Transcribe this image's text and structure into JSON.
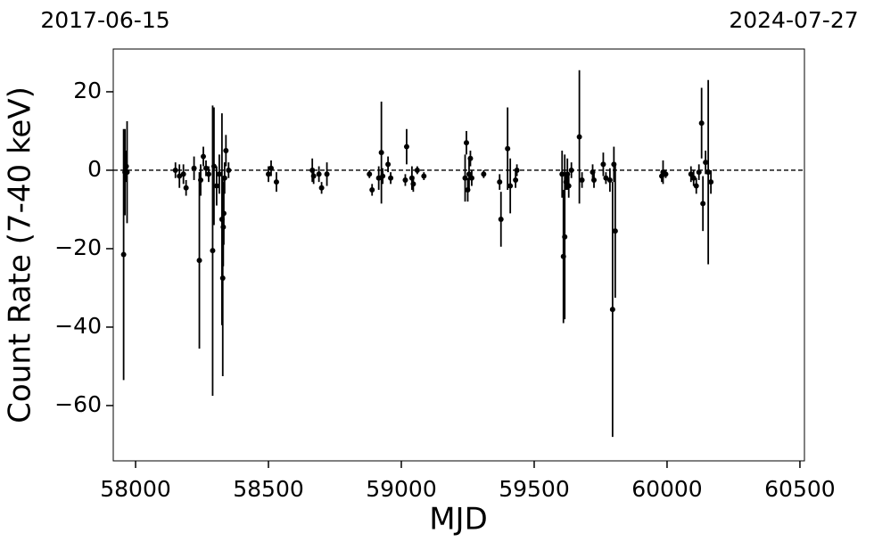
{
  "chart_data": {
    "type": "errorbar",
    "xlabel": "MJD",
    "ylabel": "Count Rate (7-40 keV)",
    "top_labels": [
      "2017-06-15",
      "2024-07-27"
    ],
    "color": "#000000",
    "hline": 0,
    "xlim": [
      57916,
      60517
    ],
    "ylim": [
      -74.1,
      30.9
    ],
    "xticks": [
      58000,
      58500,
      59000,
      59500,
      60000,
      60500
    ],
    "yticks": [
      {
        "value": -60,
        "label": "−60"
      },
      {
        "value": -40,
        "label": "−40"
      },
      {
        "value": -20,
        "label": "−20"
      },
      0,
      20
    ],
    "x": [
      57955,
      57960,
      57965,
      57968,
      58150,
      58165,
      58180,
      58190,
      58220,
      58240,
      58245,
      58255,
      58265,
      58275,
      58290,
      58295,
      58305,
      58315,
      58325,
      58328,
      58330,
      58332,
      58335,
      58340,
      58350,
      58500,
      58510,
      58530,
      58665,
      58670,
      58690,
      58700,
      58720,
      58880,
      58890,
      58915,
      58925,
      58930,
      58950,
      58960,
      59015,
      59020,
      59040,
      59045,
      59060,
      59085,
      59240,
      59245,
      59250,
      59255,
      59260,
      59265,
      59310,
      59370,
      59375,
      59400,
      59410,
      59430,
      59435,
      59605,
      59610,
      59615,
      59620,
      59625,
      59630,
      59640,
      59670,
      59680,
      59720,
      59725,
      59760,
      59770,
      59785,
      59795,
      59800,
      59805,
      59980,
      59985,
      59995,
      60090,
      60100,
      60110,
      60120,
      60130,
      60135,
      60145,
      60155,
      60165
    ],
    "y": [
      -21.5,
      -0.5,
      1,
      -0.5,
      0,
      -1.5,
      -1,
      -4.5,
      0.5,
      -23,
      -2.5,
      3.5,
      0.5,
      -1,
      -20.5,
      1,
      -4,
      -1,
      -12.5,
      -27.5,
      -14.5,
      -11,
      -2,
      5,
      0,
      -1,
      0.5,
      -3,
      0,
      -1.5,
      -1,
      -4.5,
      -1,
      -1,
      -5,
      -2,
      4.5,
      -1.5,
      1.5,
      -2,
      -2.5,
      6,
      -2,
      -3.5,
      0,
      -1.5,
      -2,
      7,
      -5,
      -1,
      3,
      -2,
      -1,
      -3,
      -12.5,
      5.5,
      -4,
      -2.5,
      0,
      -1,
      -22,
      -17,
      -3,
      -1,
      -4,
      0,
      8.5,
      -2.5,
      -0.5,
      -2.5,
      1.5,
      -2,
      -2.5,
      -35.5,
      1.5,
      -15.5,
      -1.5,
      -0.5,
      -1,
      -1,
      -2,
      -4,
      -0.5,
      12,
      -8.5,
      2,
      -0.5,
      -3
    ],
    "yerr": [
      32,
      11,
      4,
      13,
      2,
      3,
      2.5,
      2,
      3,
      22.5,
      4,
      2.5,
      2,
      2,
      37,
      15,
      5,
      5,
      27,
      25,
      10,
      8,
      4,
      4,
      2,
      2,
      2,
      2.5,
      3,
      2,
      2,
      1.5,
      3,
      1,
      1.5,
      3,
      13,
      2,
      2,
      1.5,
      1.5,
      4.5,
      3,
      2,
      1,
      1,
      6,
      3,
      3,
      4,
      2,
      2,
      1,
      2,
      7,
      10.5,
      7,
      2,
      1.5,
      6,
      17,
      21,
      2,
      4,
      3,
      2,
      17,
      2,
      2,
      2,
      3,
      1.5,
      3,
      32.5,
      4.5,
      17,
      1.5,
      3,
      1,
      2,
      2,
      2,
      2,
      9,
      7,
      3,
      23.5,
      3
    ]
  }
}
